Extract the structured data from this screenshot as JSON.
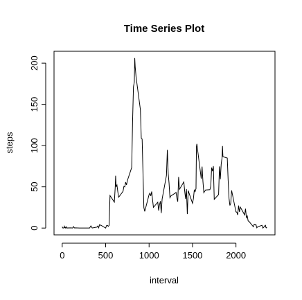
{
  "chart_data": {
    "type": "line",
    "title": "Time Series Plot",
    "x_label": "interval",
    "y_label": "steps",
    "color": "#000000",
    "x": [
      0,
      5,
      10,
      15,
      20,
      25,
      30,
      35,
      40,
      45,
      50,
      55,
      100,
      110,
      120,
      130,
      140,
      150,
      200,
      215,
      230,
      245,
      300,
      315,
      330,
      345,
      400,
      410,
      420,
      430,
      440,
      450,
      500,
      510,
      520,
      530,
      540,
      550,
      600,
      610,
      615,
      620,
      630,
      640,
      650,
      700,
      710,
      720,
      730,
      740,
      750,
      800,
      810,
      820,
      830,
      835,
      840,
      850,
      900,
      910,
      920,
      930,
      940,
      950,
      1000,
      1010,
      1020,
      1030,
      1040,
      1050,
      1100,
      1110,
      1120,
      1130,
      1140,
      1150,
      1200,
      1210,
      1220,
      1230,
      1240,
      1250,
      1300,
      1310,
      1320,
      1330,
      1340,
      1350,
      1400,
      1410,
      1420,
      1430,
      1440,
      1450,
      1500,
      1510,
      1520,
      1530,
      1540,
      1545,
      1550,
      1600,
      1610,
      1620,
      1630,
      1640,
      1650,
      1700,
      1710,
      1720,
      1730,
      1740,
      1750,
      1800,
      1810,
      1820,
      1830,
      1840,
      1845,
      1850,
      1900,
      1910,
      1920,
      1930,
      1940,
      1950,
      2000,
      2010,
      2020,
      2030,
      2040,
      2050,
      2100,
      2110,
      2120,
      2130,
      2140,
      2150,
      2200,
      2210,
      2220,
      2230,
      2240,
      2250,
      2300,
      2310,
      2320,
      2330,
      2340,
      2345,
      2350,
      2355
    ],
    "values": [
      1.7,
      0.3,
      0.1,
      0.2,
      0.1,
      2.1,
      0.5,
      0.9,
      0,
      1.5,
      0.3,
      0.1,
      0.3,
      0.2,
      0,
      1.8,
      0.2,
      0.3,
      0,
      0,
      0,
      0,
      0,
      0,
      2.6,
      0.1,
      1.2,
      2.6,
      0.3,
      4.1,
      3.5,
      3.1,
      0,
      3.0,
      3.3,
      2.1,
      3.2,
      39.5,
      31.5,
      49.3,
      63.5,
      50,
      52.2,
      44,
      37.4,
      44.5,
      50.5,
      49.9,
      55.7,
      52.3,
      57.6,
      73.4,
      129.4,
      171.2,
      177.3,
      206.2,
      195.9,
      183.4,
      143.5,
      109.1,
      108,
      66.2,
      24.8,
      20.2,
      40.6,
      42.4,
      38.9,
      44.3,
      34.3,
      25.1,
      31.4,
      21.3,
      28.4,
      32.6,
      18.2,
      35.1,
      63.9,
      94.9,
      66.3,
      54.3,
      36.9,
      38.9,
      42.3,
      43.3,
      36.6,
      32.1,
      62,
      47,
      56,
      44.8,
      35.5,
      47.3,
      16.9,
      45.5,
      30,
      35.5,
      45.9,
      44.2,
      47.8,
      98.7,
      102.1,
      60,
      74.5,
      56.4,
      42.9,
      44.6,
      46.2,
      46.6,
      50.7,
      73.4,
      68.9,
      75.1,
      34.8,
      40.7,
      74.7,
      59.3,
      77.7,
      85.3,
      99.5,
      86.6,
      84.9,
      58,
      36.1,
      27.4,
      30.2,
      45.7,
      19.6,
      19.3,
      15.9,
      27.3,
      19.6,
      25.5,
      15.9,
      23.5,
      12.8,
      14.7,
      8.7,
      8.1,
      1.6,
      4.6,
      3.7,
      4.3,
      0.3,
      1.6,
      3.3,
      0,
      1,
      2.6,
      3.3,
      0.6,
      0.2,
      1.1
    ],
    "xlim": [
      -94.2,
      2449.2
    ],
    "ylim": [
      -8.25,
      214.4
    ],
    "xticks": [
      0,
      500,
      1000,
      1500,
      2000
    ],
    "yticks": [
      0,
      50,
      100,
      150,
      200
    ]
  }
}
